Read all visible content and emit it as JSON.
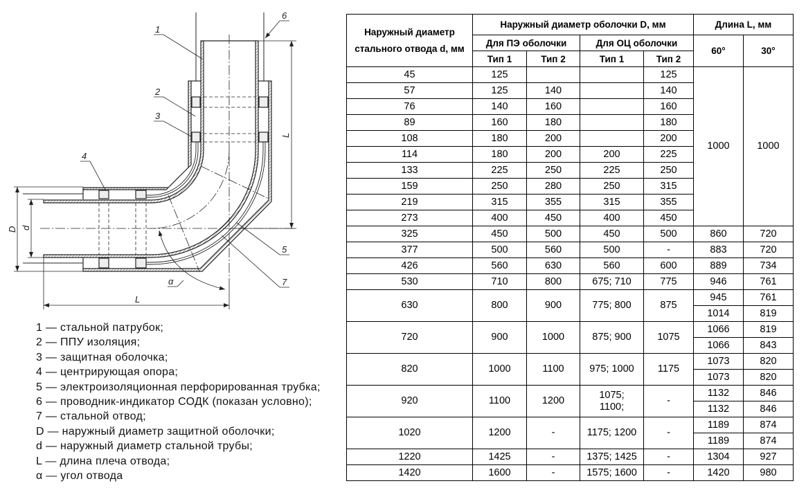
{
  "drawing": {
    "callouts": [
      "1",
      "2",
      "3",
      "4",
      "5",
      "6",
      "7"
    ],
    "dim_D": "D",
    "dim_d": "d",
    "dim_L_vertical": "L",
    "dim_L_horizontal": "L",
    "angle": "α"
  },
  "legend": [
    "1 — стальной патрубок;",
    "2 — ППУ изоляция;",
    "3 — защитная оболочка;",
    "4 — центрирующая опора;",
    "5 — электроизоляционная перфорированная трубка;",
    "6 — проводник-индикатор СОДК (показан условно);",
    "7 — стальной отвод;",
    "D — наружный диаметр защитной оболочки;",
    "d — наружный диаметр стальной трубы;",
    "L — длина плеча отвода;",
    "α — угол отвода"
  ],
  "table": {
    "headers": {
      "steel_d": "Наружный диаметр стального отвода d, мм",
      "shell_D": "Наружный диаметр оболочки D, мм",
      "length_L": "Длина L, мм",
      "pe": "Для ПЭ оболочки",
      "oc": "Для ОЦ оболочки",
      "type1_pe": "Тип 1",
      "type2_pe": "Тип 2",
      "type1_oc": "Тип 1",
      "type2_oc": "Тип 2",
      "deg60": "60°",
      "deg30": "30°"
    },
    "rows": [
      {
        "d": "45",
        "pe1": "125",
        "pe2": "",
        "oc1": "",
        "oc2": "125",
        "L_shared": [
          "1000",
          "1000"
        ]
      },
      {
        "d": "57",
        "pe1": "125",
        "pe2": "140",
        "oc1": "",
        "oc2": "140"
      },
      {
        "d": "76",
        "pe1": "140",
        "pe2": "160",
        "oc1": "",
        "oc2": "160"
      },
      {
        "d": "89",
        "pe1": "160",
        "pe2": "180",
        "oc1": "",
        "oc2": "180"
      },
      {
        "d": "108",
        "pe1": "180",
        "pe2": "200",
        "oc1": "",
        "oc2": "200"
      },
      {
        "d": "114",
        "pe1": "180",
        "pe2": "200",
        "oc1": "200",
        "oc2": "225"
      },
      {
        "d": "133",
        "pe1": "225",
        "pe2": "250",
        "oc1": "225",
        "oc2": "250"
      },
      {
        "d": "159",
        "pe1": "250",
        "pe2": "280",
        "oc1": "250",
        "oc2": "315"
      },
      {
        "d": "219",
        "pe1": "315",
        "pe2": "355",
        "oc1": "315",
        "oc2": "355"
      },
      {
        "d": "273",
        "pe1": "400",
        "pe2": "450",
        "oc1": "400",
        "oc2": "450"
      },
      {
        "d": "325",
        "pe1": "450",
        "pe2": "500",
        "oc1": "450",
        "oc2": "500",
        "L": [
          [
            "860",
            "720"
          ]
        ]
      },
      {
        "d": "377",
        "pe1": "500",
        "pe2": "560",
        "oc1": "500",
        "oc2": "-",
        "L": [
          [
            "883",
            "720"
          ]
        ]
      },
      {
        "d": "426",
        "pe1": "560",
        "pe2": "630",
        "oc1": "560",
        "oc2": "600",
        "L": [
          [
            "889",
            "734"
          ]
        ]
      },
      {
        "d": "530",
        "pe1": "710",
        "pe2": "800",
        "oc1": "675; 710",
        "oc2": "775",
        "L": [
          [
            "946",
            "761"
          ]
        ]
      },
      {
        "d": "630",
        "pe1": "800",
        "pe2": "900",
        "oc1": "775; 800",
        "oc2": "875",
        "L": [
          [
            "945",
            "761"
          ],
          [
            "1014",
            "819"
          ]
        ]
      },
      {
        "d": "720",
        "pe1": "900",
        "pe2": "1000",
        "oc1": "875; 900",
        "oc2": "1075",
        "L": [
          [
            "1066",
            "819"
          ],
          [
            "1066",
            "843"
          ]
        ]
      },
      {
        "d": "820",
        "pe1": "1000",
        "pe2": "1100",
        "oc1": "975; 1000",
        "oc2": "1175",
        "L": [
          [
            "1073",
            "820"
          ],
          [
            "1073",
            "820"
          ]
        ]
      },
      {
        "d": "920",
        "pe1": "1100",
        "pe2": "1200",
        "oc1": "1075;\n1100;",
        "oc2": "-",
        "L": [
          [
            "1132",
            "846"
          ],
          [
            "1132",
            "846"
          ]
        ]
      },
      {
        "d": "1020",
        "pe1": "1200",
        "pe2": "-",
        "oc1": "1175; 1200",
        "oc2": "-",
        "L": [
          [
            "1189",
            "874"
          ],
          [
            "1189",
            "874"
          ]
        ]
      },
      {
        "d": "1220",
        "pe1": "1425",
        "pe2": "-",
        "oc1": "1375; 1425",
        "oc2": "-",
        "L": [
          [
            "1304",
            "927"
          ]
        ]
      },
      {
        "d": "1420",
        "pe1": "1600",
        "pe2": "-",
        "oc1": "1575; 1600",
        "oc2": "-",
        "L": [
          [
            "1420",
            "980"
          ]
        ]
      }
    ]
  }
}
